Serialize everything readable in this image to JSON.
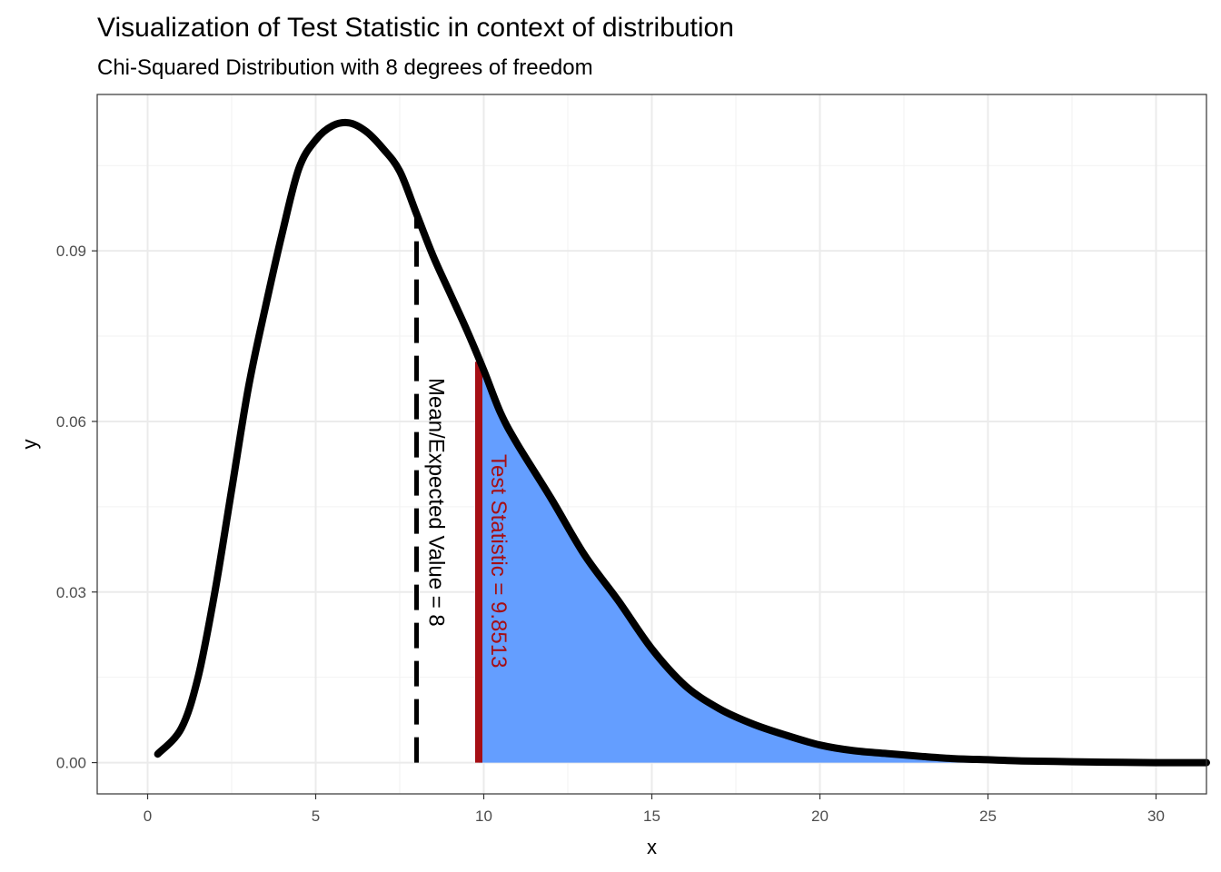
{
  "chart_data": {
    "type": "line",
    "title": "Visualization of Test Statistic in context of distribution",
    "subtitle": "Chi-Squared Distribution with 8 degrees of freedom",
    "xlabel": "x",
    "ylabel": "y",
    "xlim": [
      -1.5,
      31.5
    ],
    "ylim": [
      -0.0055,
      0.1175
    ],
    "x_ticks": [
      0,
      5,
      10,
      15,
      20,
      25,
      30
    ],
    "y_ticks": [
      0.0,
      0.03,
      0.06,
      0.09
    ],
    "x_tick_labels": [
      "0",
      "5",
      "10",
      "15",
      "20",
      "25",
      "30"
    ],
    "y_tick_labels": [
      "0.00",
      "0.03",
      "0.06",
      "0.09"
    ],
    "grid": true,
    "theme": "bw",
    "density": {
      "name": "",
      "color": "#000000",
      "x": [
        0.3,
        1,
        1.5,
        2,
        2.5,
        3,
        3.5,
        4,
        4.5,
        5,
        5.5,
        6,
        6.5,
        7,
        7.5,
        8,
        8.5,
        9,
        9.5,
        10,
        10.5,
        11,
        12,
        13,
        14,
        15,
        16,
        17,
        18,
        19,
        20,
        21,
        22,
        23,
        24,
        25,
        26,
        27,
        28,
        29,
        30,
        31.5
      ],
      "y": [
        0.0015,
        0.006,
        0.015,
        0.03,
        0.048,
        0.066,
        0.08,
        0.093,
        0.1045,
        0.1095,
        0.112,
        0.1125,
        0.111,
        0.108,
        0.104,
        0.0965,
        0.089,
        0.0825,
        0.076,
        0.069,
        0.0615,
        0.056,
        0.0465,
        0.0365,
        0.0285,
        0.02,
        0.0135,
        0.0095,
        0.0068,
        0.0048,
        0.0031,
        0.0021,
        0.0016,
        0.0011,
        0.0007,
        0.0005,
        0.0003,
        0.0002,
        0.0001,
        5e-05,
        0.0,
        0.0
      ]
    },
    "shaded_tail": {
      "from_x": 9.8513,
      "color": "#619CFF"
    },
    "annotations": [
      {
        "id": "mean-line",
        "x": 8,
        "y_top": 0.097,
        "style": "dashed",
        "color": "#000000",
        "label": "Mean/Expected Value = 8"
      },
      {
        "id": "test-statistic-line",
        "x": 9.8513,
        "y_top": 0.0705,
        "style": "solid",
        "color": "#A50F15",
        "label": "Test Statistic =  9.8513"
      }
    ]
  }
}
